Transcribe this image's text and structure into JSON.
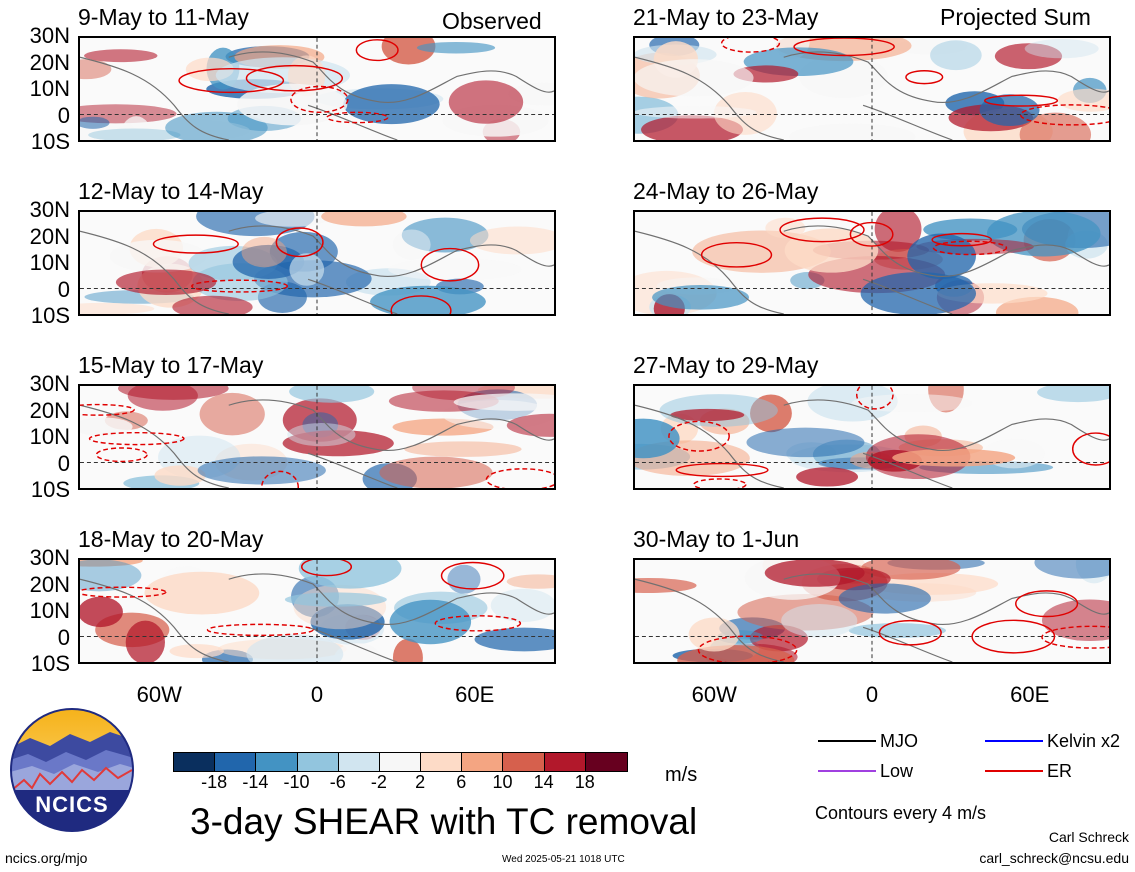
{
  "header": {
    "observed_label": "Observed",
    "projected_label": "Projected Sum"
  },
  "panels_left": [
    {
      "title": "9-May to 11-May"
    },
    {
      "title": "12-May to 14-May"
    },
    {
      "title": "15-May to 17-May"
    },
    {
      "title": "18-May to 20-May"
    }
  ],
  "panels_right": [
    {
      "title": "21-May to 23-May"
    },
    {
      "title": "24-May to 26-May"
    },
    {
      "title": "27-May to 29-May"
    },
    {
      "title": "30-May to 1-Jun"
    }
  ],
  "lat_labels": [
    "30N",
    "20N",
    "10N",
    "0",
    "10S"
  ],
  "lon_labels": [
    "60W",
    "0",
    "60E"
  ],
  "legend": {
    "items": [
      {
        "label": "MJO",
        "color": "#000000"
      },
      {
        "label": "Kelvin x2",
        "color": "#0000ff"
      },
      {
        "label": "Low",
        "color": "#a040e0"
      },
      {
        "label": "ER",
        "color": "#e00000"
      }
    ],
    "contours_note": "Contours every 4 m/s"
  },
  "colorbar": {
    "ticks": [
      "-18",
      "-14",
      "-10",
      "-6",
      "-2",
      "2",
      "6",
      "10",
      "14",
      "18"
    ],
    "colors": [
      "#0a2f5e",
      "#2166ac",
      "#4393c3",
      "#92c5de",
      "#d1e5f0",
      "#f7f7f7",
      "#fddbc7",
      "#f4a582",
      "#d6604d",
      "#b2182b",
      "#67001f"
    ],
    "unit": "m/s"
  },
  "main_title": "3-day SHEAR with TC removal",
  "logo": {
    "text": "NCICS"
  },
  "footer": {
    "left": "ncics.org/mjo",
    "center": "Wed 2025-05-21 1018 UTC",
    "author": "Carl Schreck",
    "email": "carl_schreck@ncsu.edu"
  }
}
